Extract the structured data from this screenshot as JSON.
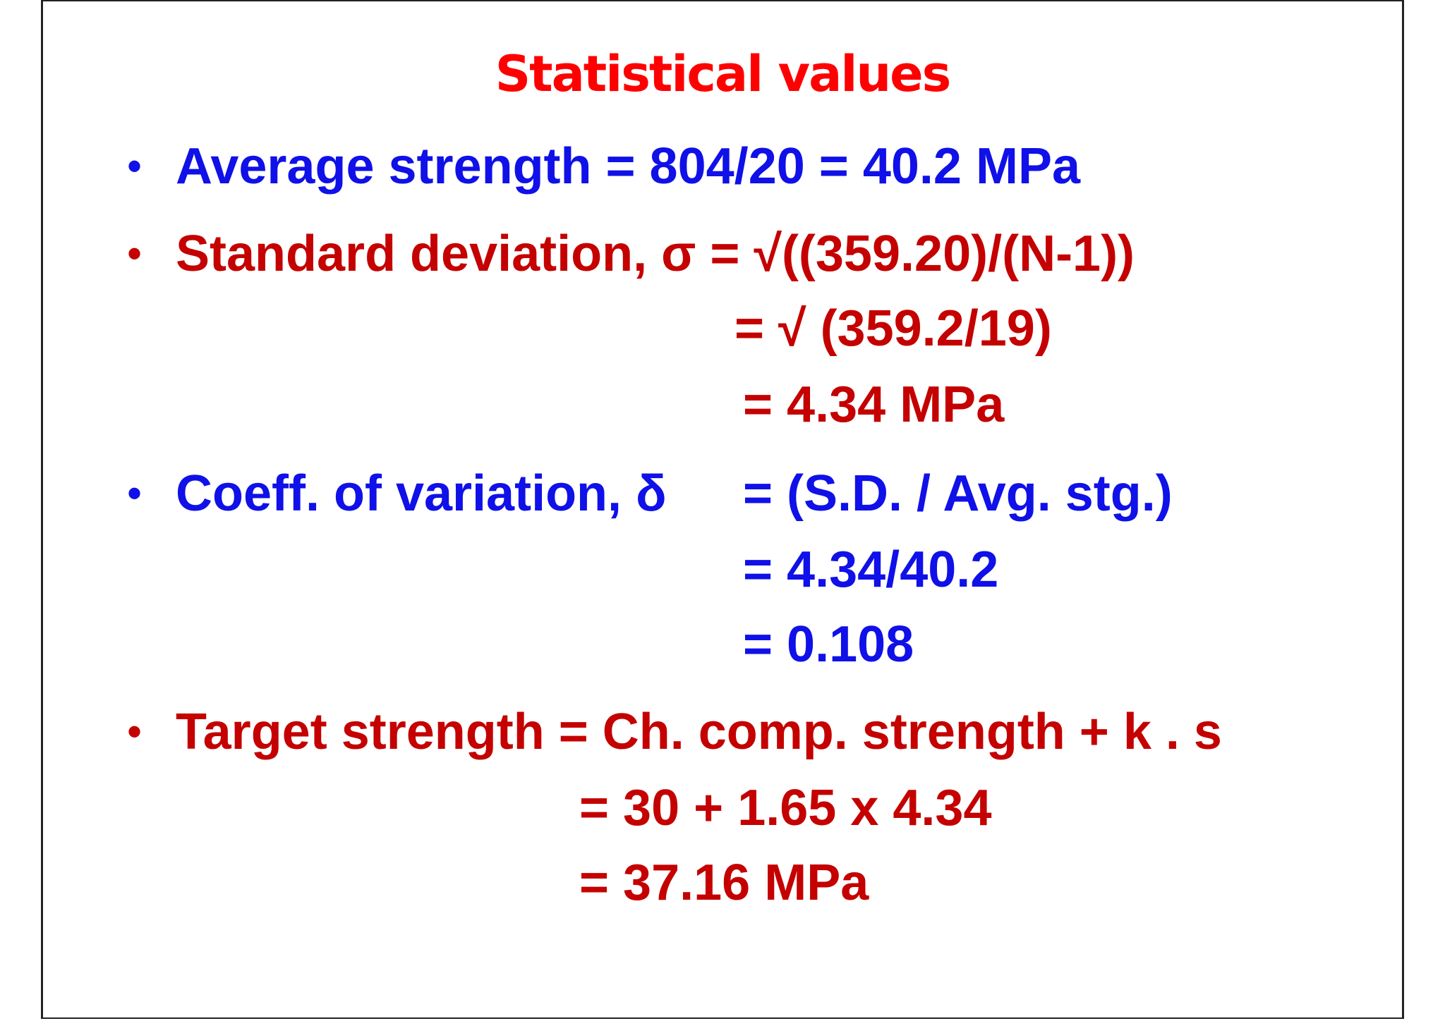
{
  "colors": {
    "title": "#ff0000",
    "blue": "#1010e8",
    "dark_red": "#c40000"
  },
  "title": "Statistical values",
  "bullet_glyph": "•",
  "average": {
    "line1": "Average strength = 804/20 = 40.2 MPa"
  },
  "std_dev": {
    "line1": "Standard deviation, σ = √((359.20)/(N-1))",
    "line2": "= √ (359.2/19)",
    "line3": "= 4.34 MPa"
  },
  "coeff": {
    "label": "Coeff. of variation, δ",
    "line1": "= (S.D. / Avg. stg.)",
    "line2": "= 4.34/40.2",
    "line3": "= 0.108"
  },
  "target": {
    "line1": "Target strength = Ch. comp. strength + k . s",
    "line2": "= 30 + 1.65 x 4.34",
    "line3": "= 37.16 MPa"
  }
}
